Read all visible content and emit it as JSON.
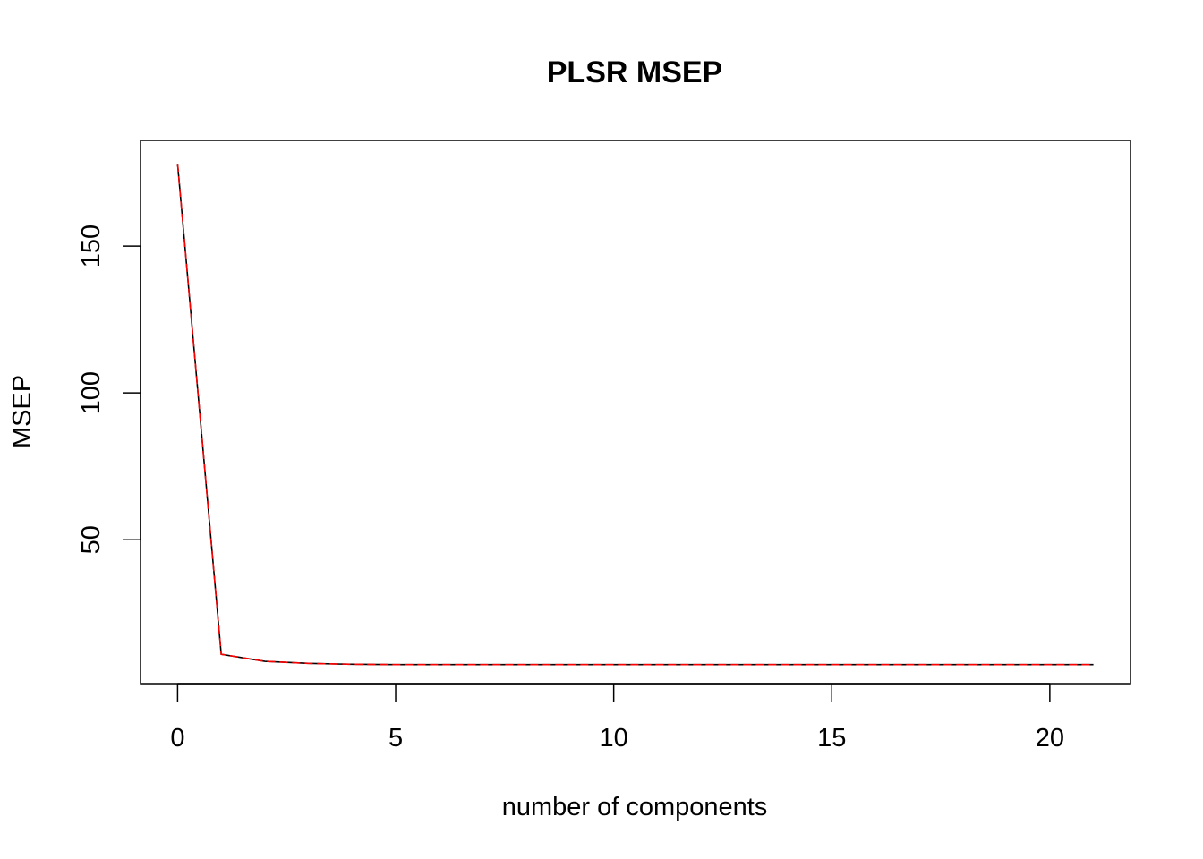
{
  "chart_data": {
    "type": "line",
    "title": "PLSR MSEP",
    "xlabel": "number of components",
    "ylabel": "MSEP",
    "xlim": [
      -0.85,
      21.85
    ],
    "ylim": [
      1.0,
      186.0
    ],
    "x_ticks": [
      0,
      5,
      10,
      15,
      20
    ],
    "y_ticks": [
      50,
      100,
      150
    ],
    "x": [
      0,
      1,
      2,
      3,
      4,
      5,
      6,
      7,
      8,
      9,
      10,
      11,
      12,
      13,
      14,
      15,
      16,
      17,
      18,
      19,
      20,
      21
    ],
    "series": [
      {
        "color": "#000000",
        "dash": "solid",
        "values": [
          178.0,
          11.0,
          8.6,
          7.9,
          7.6,
          7.5,
          7.5,
          7.5,
          7.5,
          7.5,
          7.5,
          7.5,
          7.5,
          7.5,
          7.5,
          7.5,
          7.5,
          7.5,
          7.5,
          7.5,
          7.5,
          7.5
        ]
      },
      {
        "color": "#ff0000",
        "dash": "dashed",
        "values": [
          178.0,
          11.0,
          8.6,
          7.9,
          7.6,
          7.5,
          7.5,
          7.5,
          7.5,
          7.5,
          7.5,
          7.5,
          7.5,
          7.5,
          7.5,
          7.5,
          7.5,
          7.5,
          7.5,
          7.5,
          7.5,
          7.5
        ]
      }
    ],
    "grid": false,
    "box": true
  }
}
